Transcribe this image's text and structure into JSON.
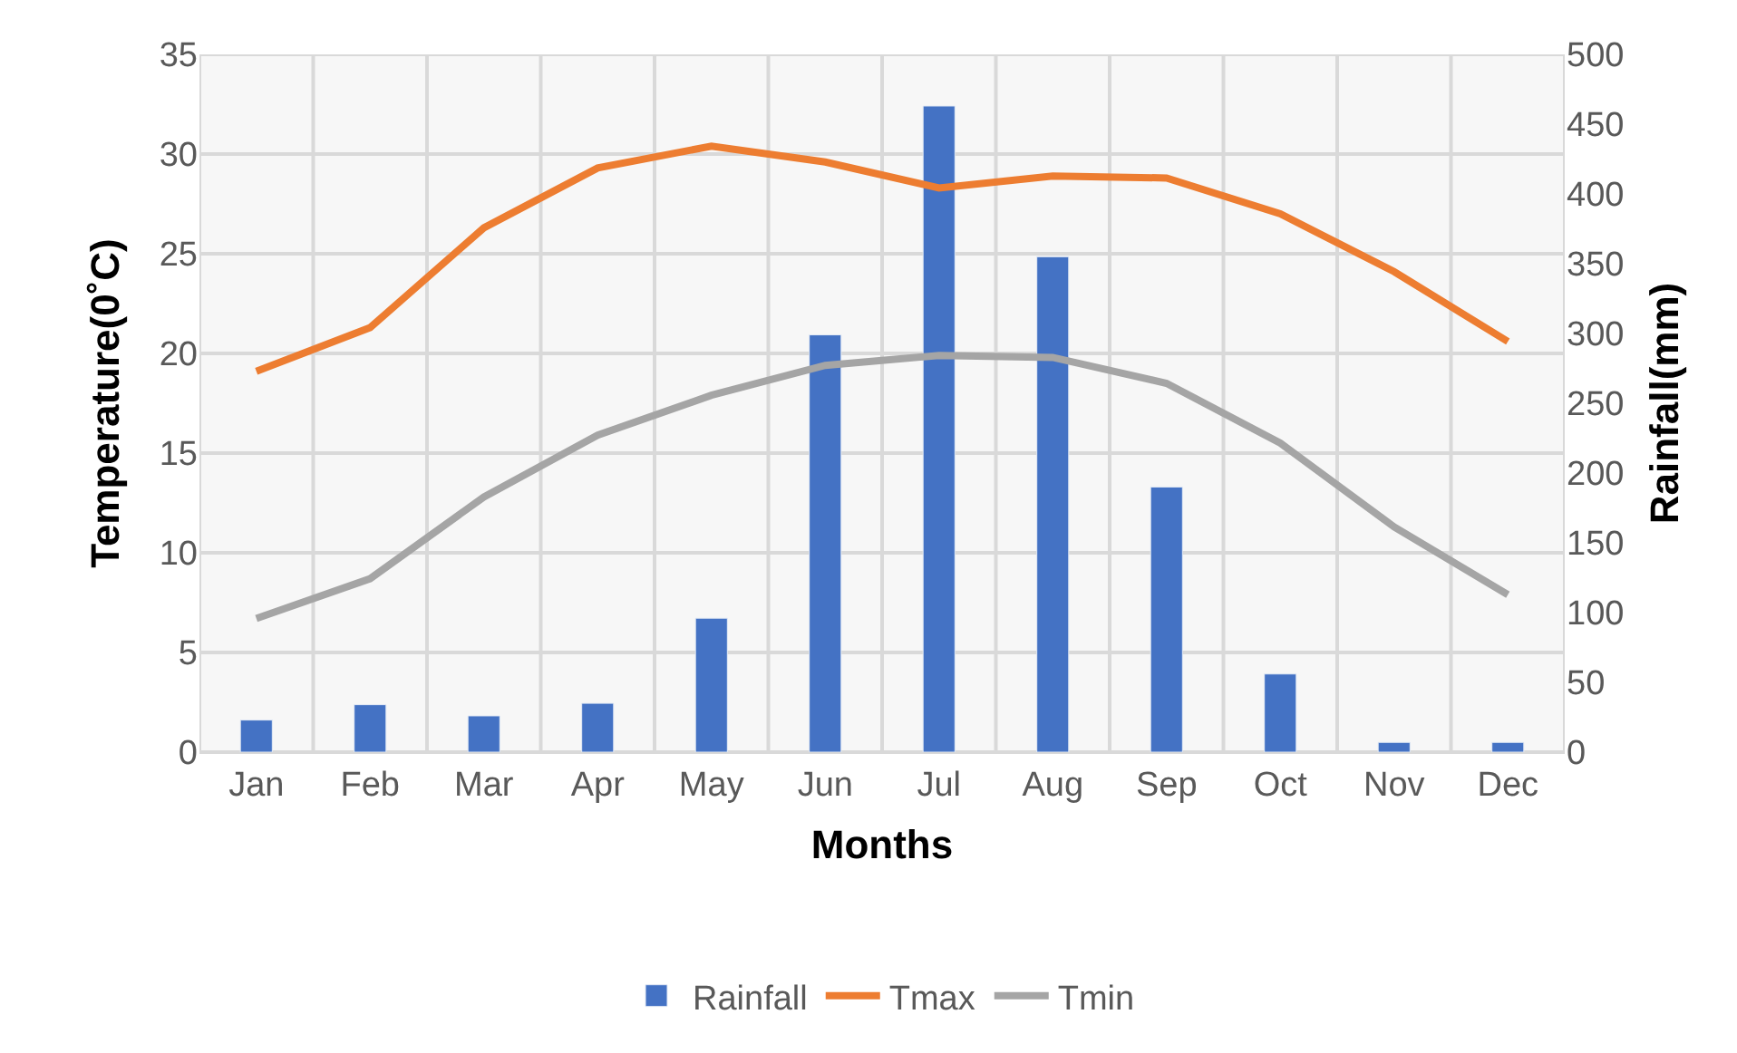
{
  "chart_data": {
    "type": "bar",
    "xlabel": "Months",
    "ylabel": "Temperature(0˚C)",
    "y2label": "Rainfall(mm)",
    "categories": [
      "Jan",
      "Feb",
      "Mar",
      "Apr",
      "May",
      "Jun",
      "Jul",
      "Aug",
      "Sep",
      "Oct",
      "Nov",
      "Dec"
    ],
    "series": [
      {
        "name": "Rainfall",
        "axis": "y2",
        "color": "#4472c4",
        "values": [
          23,
          34,
          26,
          35,
          96,
          299,
          463,
          355,
          190,
          56,
          7,
          7
        ]
      },
      {
        "name": "Tmax",
        "type": "line",
        "color": "#ed7d31",
        "values": [
          19.1,
          21.3,
          26.3,
          29.3,
          30.4,
          29.6,
          28.3,
          28.9,
          28.8,
          27.0,
          24.1,
          20.6
        ]
      },
      {
        "name": "Tmin",
        "type": "line",
        "color": "#a5a5a5",
        "values": [
          6.7,
          8.7,
          12.8,
          15.9,
          17.9,
          19.4,
          19.9,
          19.8,
          18.5,
          15.5,
          11.3,
          7.9
        ]
      }
    ],
    "ylim": [
      0,
      35
    ],
    "yticks": [
      0,
      5,
      10,
      15,
      20,
      25,
      30,
      35
    ],
    "y2lim": [
      0,
      500
    ],
    "y2ticks": [
      0,
      50,
      100,
      150,
      200,
      250,
      300,
      350,
      400,
      450,
      500
    ],
    "grid": true,
    "legend": "bottom",
    "marker": "none",
    "line_style": "solid"
  }
}
